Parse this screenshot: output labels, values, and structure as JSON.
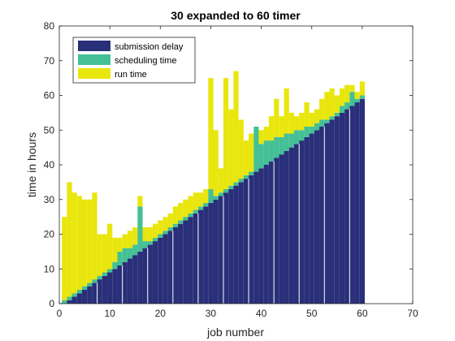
{
  "chart_data": {
    "type": "bar",
    "stacked": true,
    "title": "30 expanded to 60 timer",
    "xlabel": "job number",
    "ylabel": "time in hours",
    "xlim": [
      0,
      70
    ],
    "ylim": [
      0,
      80
    ],
    "xticks": [
      0,
      10,
      20,
      30,
      40,
      50,
      60,
      70
    ],
    "yticks": [
      0,
      10,
      20,
      30,
      40,
      50,
      60,
      70,
      80
    ],
    "grid": false,
    "legend_position": "top-left",
    "x": [
      1,
      2,
      3,
      4,
      5,
      6,
      7,
      8,
      9,
      10,
      11,
      12,
      13,
      14,
      15,
      16,
      17,
      18,
      19,
      20,
      21,
      22,
      23,
      24,
      25,
      26,
      27,
      28,
      29,
      30,
      31,
      32,
      33,
      34,
      35,
      36,
      37,
      38,
      39,
      40,
      41,
      42,
      43,
      44,
      45,
      46,
      47,
      48,
      49,
      50,
      51,
      52,
      53,
      54,
      55,
      56,
      57,
      58,
      59,
      60
    ],
    "series": [
      {
        "name": "submission delay",
        "color": "#2a2f7a",
        "values": [
          0,
          1,
          2,
          3,
          4,
          5,
          6,
          7,
          8,
          9,
          10,
          11,
          12,
          13,
          14,
          15,
          16,
          17,
          18,
          19,
          20,
          21,
          22,
          23,
          24,
          25,
          26,
          27,
          28,
          29,
          30,
          31,
          32,
          33,
          34,
          35,
          36,
          37,
          38,
          39,
          40,
          41,
          42,
          43,
          44,
          45,
          46,
          47,
          48,
          49,
          50,
          51,
          52,
          53,
          54,
          55,
          56,
          57,
          58,
          59
        ]
      },
      {
        "name": "scheduling time",
        "color": "#44c096",
        "values": [
          1,
          1,
          1,
          1,
          1,
          1,
          1,
          1,
          1,
          1,
          2,
          4,
          4,
          3,
          3,
          13,
          2,
          1,
          1,
          1,
          1,
          1,
          1,
          1,
          1,
          1,
          1,
          1,
          1,
          4,
          1,
          1,
          1,
          1,
          1,
          1,
          1,
          1,
          13,
          7,
          7,
          6,
          6,
          5,
          5,
          4,
          4,
          3,
          3,
          2,
          2,
          2,
          1,
          1,
          1,
          2,
          2,
          4,
          1,
          1
        ]
      },
      {
        "name": "run time",
        "color": "#e9e60d",
        "values": [
          24,
          33,
          29,
          27,
          25,
          24,
          25,
          12,
          11,
          13,
          7,
          4,
          4,
          5,
          5,
          3,
          4,
          4,
          4,
          4,
          4,
          4,
          5,
          5,
          5,
          5,
          5,
          4,
          4,
          32,
          19,
          7,
          32,
          22,
          32,
          17,
          10,
          11,
          0,
          4,
          4,
          7,
          11,
          6,
          13,
          6,
          4,
          5,
          7,
          4,
          4,
          6,
          8,
          8,
          5,
          5,
          5,
          2,
          2,
          4
        ]
      }
    ]
  }
}
